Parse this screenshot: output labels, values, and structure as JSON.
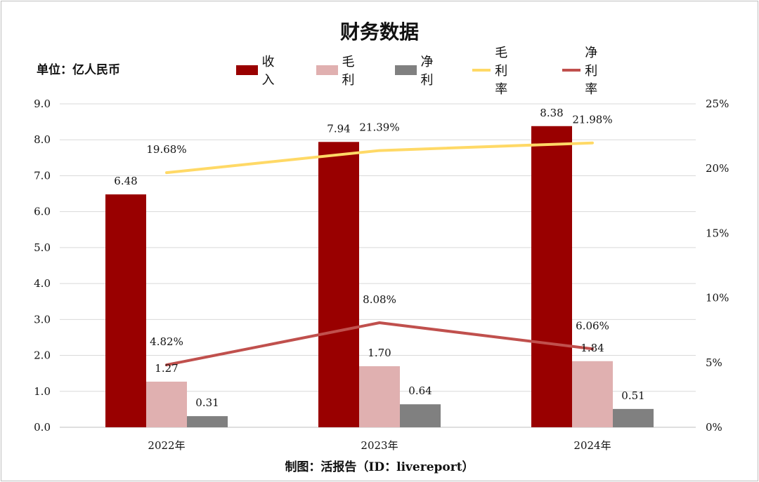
{
  "title": "财务数据",
  "unit_label": "单位：亿人民币",
  "footer": "制图：活报告（ID：livereport）",
  "legend": [
    {
      "label": "收入",
      "kind": "bar",
      "color": "#990000"
    },
    {
      "label": "毛利",
      "kind": "bar",
      "color": "#e0b0b0"
    },
    {
      "label": "净利",
      "kind": "bar",
      "color": "#808080"
    },
    {
      "label": "毛利率",
      "kind": "line",
      "color": "#ffd966"
    },
    {
      "label": "净利率",
      "kind": "line",
      "color": "#c0504d"
    }
  ],
  "chart_data": {
    "type": "bar",
    "title": "财务数据",
    "categories": [
      "2022年",
      "2023年",
      "2024年"
    ],
    "series": [
      {
        "name": "收入",
        "type": "bar",
        "axis": "left",
        "values": [
          6.48,
          7.94,
          8.38
        ],
        "labels": [
          "6.48",
          "7.94",
          "8.38"
        ],
        "color": "#990000"
      },
      {
        "name": "毛利",
        "type": "bar",
        "axis": "left",
        "values": [
          1.27,
          1.7,
          1.84
        ],
        "labels": [
          "1.27",
          "1.70",
          "1.84"
        ],
        "color": "#e0b0b0"
      },
      {
        "name": "净利",
        "type": "bar",
        "axis": "left",
        "values": [
          0.31,
          0.64,
          0.51
        ],
        "labels": [
          "0.31",
          "0.64",
          "0.51"
        ],
        "color": "#808080"
      },
      {
        "name": "毛利率",
        "type": "line",
        "axis": "right",
        "values": [
          19.68,
          21.39,
          21.98
        ],
        "labels": [
          "19.68%",
          "21.39%",
          "21.98%"
        ],
        "color": "#ffd966"
      },
      {
        "name": "净利率",
        "type": "line",
        "axis": "right",
        "values": [
          4.82,
          8.08,
          6.06
        ],
        "labels": [
          "4.82%",
          "8.08%",
          "6.06%"
        ],
        "color": "#c0504d"
      }
    ],
    "y_left": {
      "min": 0,
      "max": 9,
      "ticks": [
        "0.0",
        "1.0",
        "2.0",
        "3.0",
        "4.0",
        "5.0",
        "6.0",
        "7.0",
        "8.0",
        "9.0"
      ]
    },
    "y_right": {
      "min": 0,
      "max": 25,
      "ticks": [
        "0%",
        "5%",
        "10%",
        "15%",
        "20%",
        "25%"
      ]
    },
    "grid": true,
    "legend_position": "top"
  }
}
